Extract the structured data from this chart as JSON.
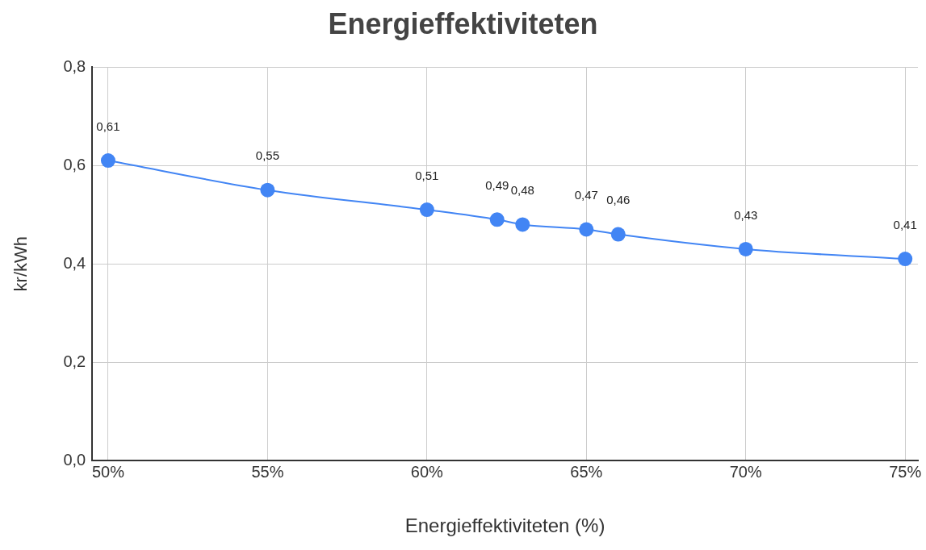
{
  "chart_data": {
    "type": "line",
    "title": "Energieffektiviteten",
    "xlabel": "Energieffektiviteten (%)",
    "ylabel": "kr/kWh",
    "x": [
      50,
      55,
      60,
      62.2,
      63,
      65,
      66,
      70,
      75
    ],
    "series": [
      {
        "color": "#4285f4",
        "values": [
          0.61,
          0.55,
          0.51,
          0.49,
          0.48,
          0.47,
          0.46,
          0.43,
          0.41
        ],
        "value_labels": [
          "0,61",
          "0,55",
          "0,51",
          "0,49",
          "0,48",
          "0,47",
          "0,46",
          "0,43",
          "0,41"
        ]
      }
    ],
    "xlim": [
      49.5,
      75.4
    ],
    "xticks": [
      {
        "value": 50,
        "label": "50%"
      },
      {
        "value": 55,
        "label": "55%"
      },
      {
        "value": 60,
        "label": "60%"
      },
      {
        "value": 65,
        "label": "65%"
      },
      {
        "value": 70,
        "label": "70%"
      },
      {
        "value": 75,
        "label": "75%"
      }
    ],
    "ylim": [
      0,
      0.8
    ],
    "yticks": [
      {
        "value": 0,
        "label": "0,0"
      },
      {
        "value": 0.2,
        "label": "0,2"
      },
      {
        "value": 0.4,
        "label": "0,4"
      },
      {
        "value": 0.6,
        "label": "0,6"
      },
      {
        "value": 0.8,
        "label": "0,8"
      }
    ],
    "grid": true,
    "legend": false,
    "marker": "circle",
    "line_style": "solid"
  }
}
